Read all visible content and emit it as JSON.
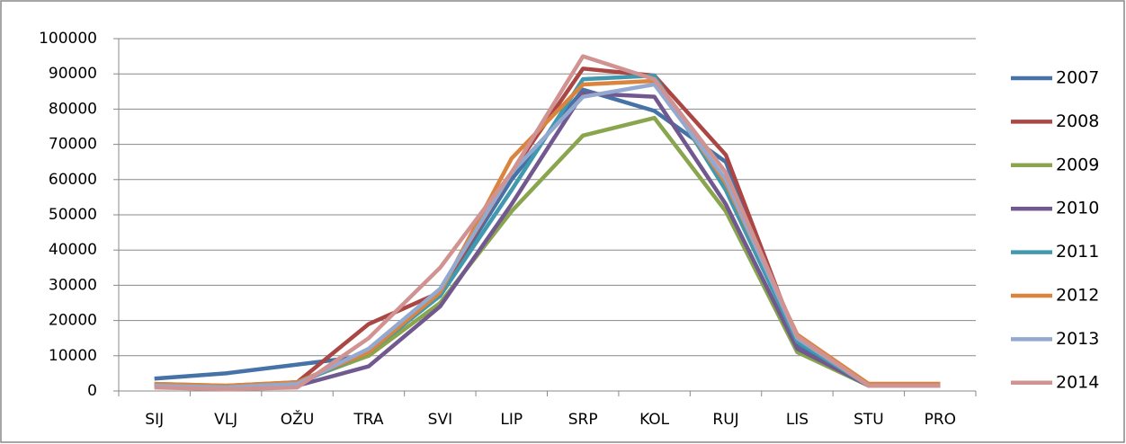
{
  "chart_data": {
    "type": "line",
    "categories": [
      "SIJ",
      "VLJ",
      "OŽU",
      "TRA",
      "SVI",
      "LIP",
      "SRP",
      "KOL",
      "RUJ",
      "LIS",
      "STU",
      "PRO"
    ],
    "series": [
      {
        "name": "2007",
        "color": "#4572a7",
        "values": [
          3500,
          5000,
          7500,
          10000,
          28000,
          60000,
          85500,
          79500,
          65000,
          13000,
          1500,
          1500
        ]
      },
      {
        "name": "2008",
        "color": "#aa4643",
        "values": [
          1500,
          1000,
          2500,
          19000,
          28000,
          62000,
          91500,
          89500,
          67000,
          14000,
          2000,
          2000
        ]
      },
      {
        "name": "2009",
        "color": "#89a54e",
        "values": [
          2000,
          1500,
          2500,
          10000,
          25000,
          51000,
          72500,
          77500,
          51000,
          11000,
          1500,
          1500
        ]
      },
      {
        "name": "2010",
        "color": "#71588f",
        "values": [
          1500,
          1000,
          1500,
          7000,
          24000,
          53000,
          84500,
          83500,
          53000,
          12000,
          1500,
          1500
        ]
      },
      {
        "name": "2011",
        "color": "#4198af",
        "values": [
          1500,
          1000,
          2000,
          11000,
          27000,
          57000,
          88500,
          89500,
          57000,
          14000,
          1500,
          1500
        ]
      },
      {
        "name": "2012",
        "color": "#db843d",
        "values": [
          2000,
          1500,
          2500,
          11000,
          28000,
          66000,
          87000,
          88000,
          59000,
          16000,
          2000,
          2000
        ]
      },
      {
        "name": "2013",
        "color": "#93a9cf",
        "values": [
          1500,
          1000,
          2000,
          12000,
          29000,
          62000,
          83500,
          87000,
          60000,
          15000,
          1500,
          1500
        ]
      },
      {
        "name": "2014",
        "color": "#d19392",
        "values": [
          1000,
          500,
          1000,
          15000,
          35000,
          62000,
          95000,
          88500,
          62000,
          15500,
          1500,
          1500
        ]
      }
    ],
    "ylim": [
      0,
      100000
    ],
    "yticks": [
      0,
      10000,
      20000,
      30000,
      40000,
      50000,
      60000,
      70000,
      80000,
      90000,
      100000
    ],
    "grid": true,
    "legend": "right"
  }
}
